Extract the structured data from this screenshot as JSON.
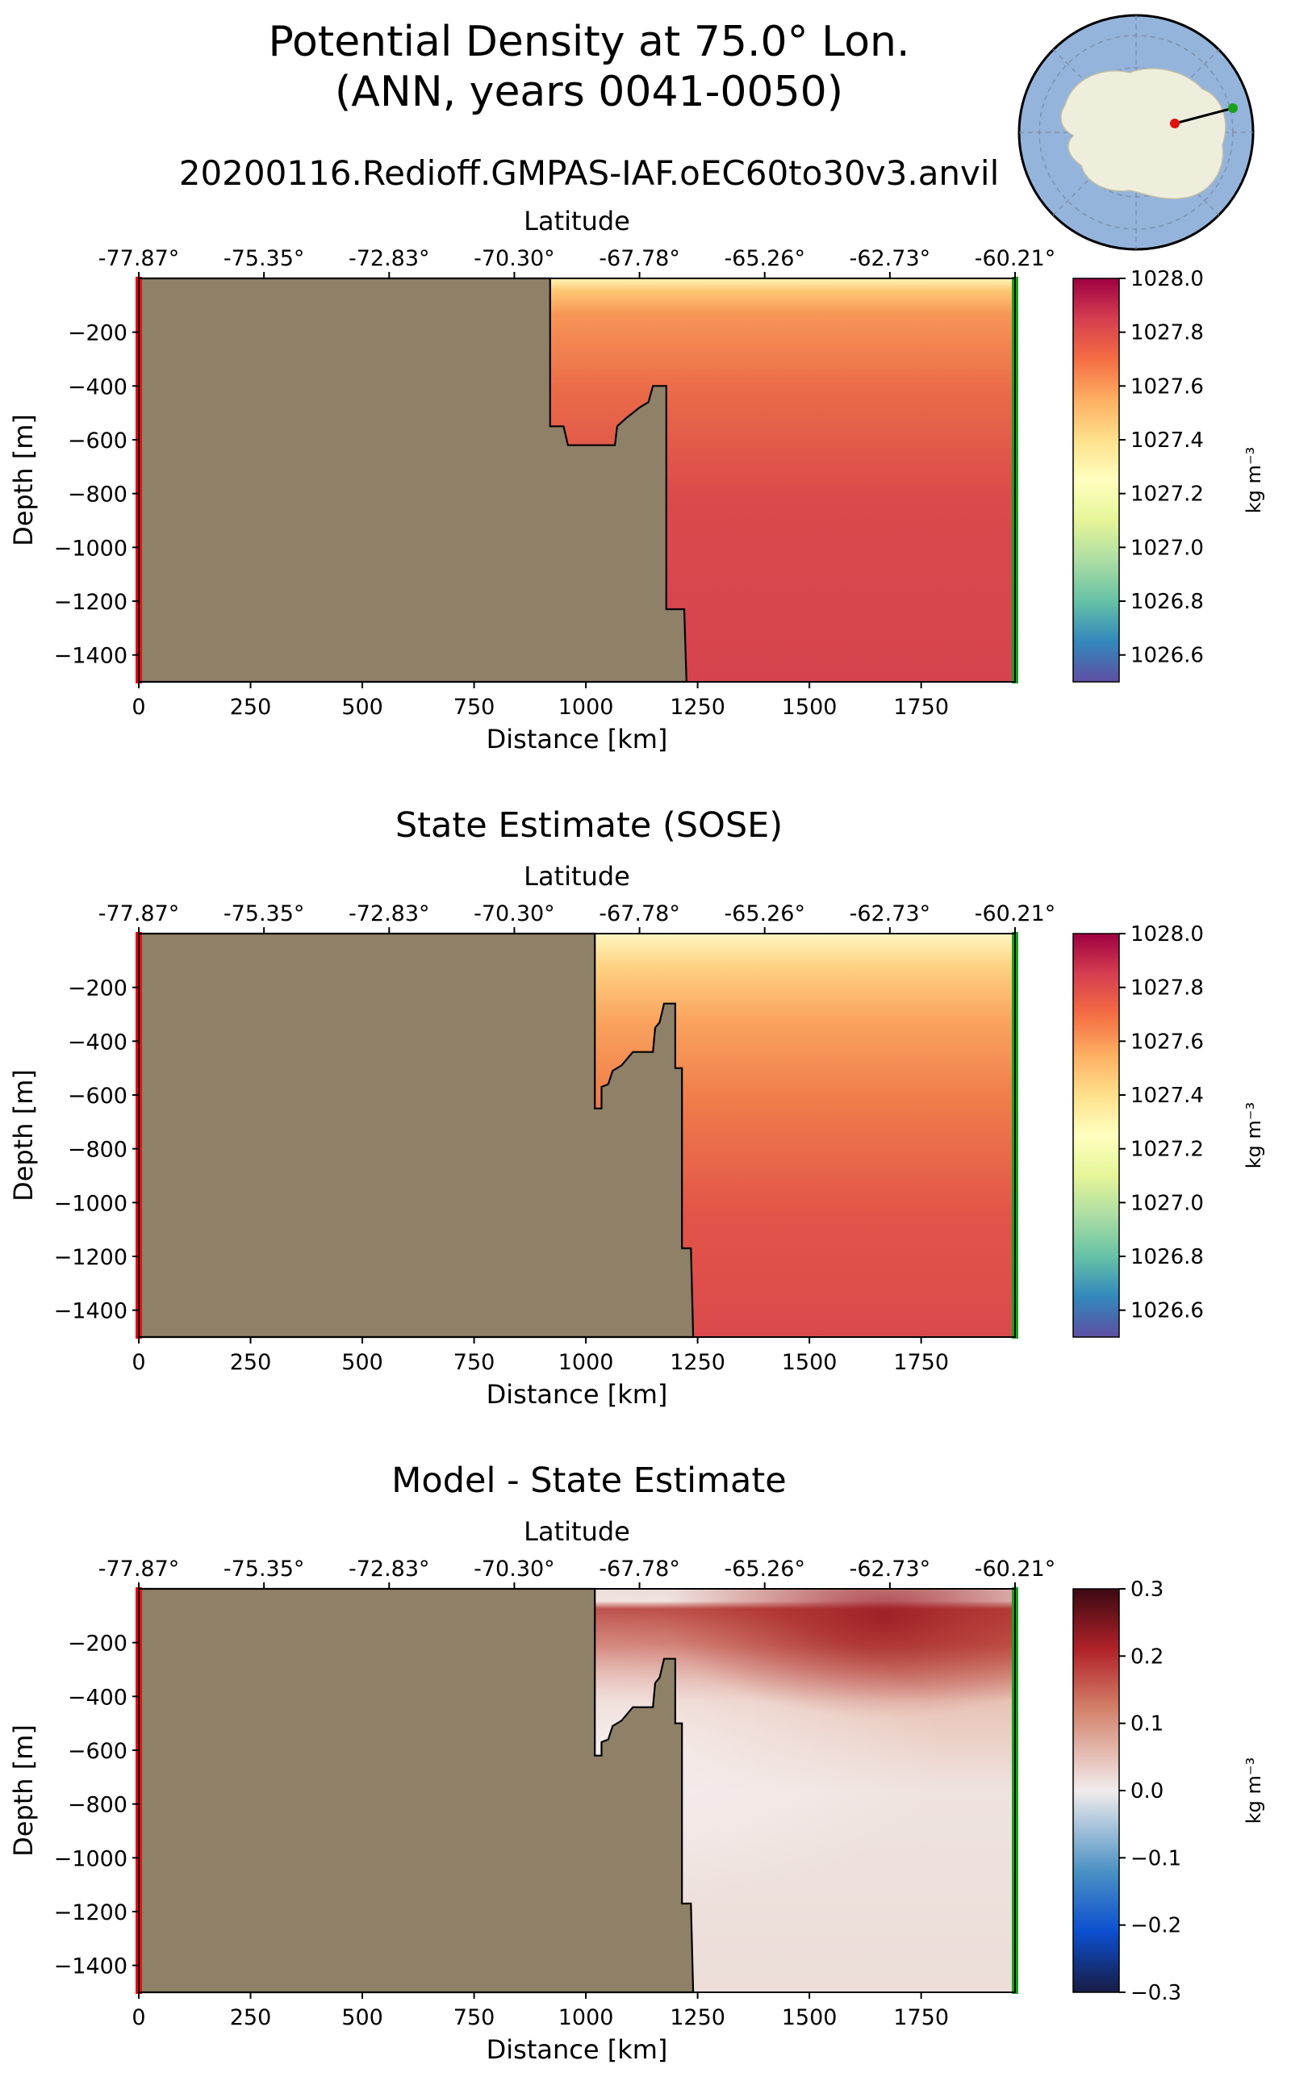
{
  "figure": {
    "title_line1": "Potential Density at 75.0° Lon.",
    "title_line2": "(ANN, years 0041-0050)",
    "run_name": "20200116.Redioff.GMPAS-IAF.oEC60to30v3.anvil"
  },
  "chart_data": [
    {
      "type": "heatmap",
      "title": "",
      "xlabel": "Distance [km]",
      "ylabel": "Depth [m]",
      "top_xlabel": "Latitude",
      "xlim": [
        0,
        1960
      ],
      "ylim": [
        -1500,
        0
      ],
      "x_ticks": [
        0,
        250,
        500,
        750,
        1000,
        1250,
        1500,
        1750
      ],
      "y_ticks": [
        -200,
        -400,
        -600,
        -800,
        -1000,
        -1200,
        -1400
      ],
      "lat_ticks": [
        "-77.87°",
        "-75.35°",
        "-72.83°",
        "-70.30°",
        "-67.78°",
        "-65.26°",
        "-62.73°",
        "-60.21°"
      ],
      "colorbar": {
        "min": 1026.5,
        "max": 1028.0,
        "ticks": [
          "1028.0",
          "1027.8",
          "1027.6",
          "1027.4",
          "1027.2",
          "1027.0",
          "1026.8",
          "1026.6"
        ],
        "label": "kg m⁻³",
        "colormap": "spectral"
      },
      "bathymetry": [
        [
          0,
          0
        ],
        [
          920,
          0
        ],
        [
          920,
          -550
        ],
        [
          950,
          -550
        ],
        [
          960,
          -620
        ],
        [
          1065,
          -620
        ],
        [
          1070,
          -550
        ],
        [
          1090,
          -520
        ],
        [
          1105,
          -500
        ],
        [
          1120,
          -480
        ],
        [
          1140,
          -460
        ],
        [
          1150,
          -400
        ],
        [
          1180,
          -400
        ],
        [
          1180,
          -1230
        ],
        [
          1220,
          -1230
        ],
        [
          1225,
          -1500
        ],
        [
          0,
          -1500
        ]
      ],
      "surface_value": 1027.25,
      "deep_value": 1027.77
    },
    {
      "type": "heatmap",
      "title": "State Estimate (SOSE)",
      "xlabel": "Distance [km]",
      "ylabel": "Depth [m]",
      "top_xlabel": "Latitude",
      "xlim": [
        0,
        1960
      ],
      "ylim": [
        -1500,
        0
      ],
      "x_ticks": [
        0,
        250,
        500,
        750,
        1000,
        1250,
        1500,
        1750
      ],
      "y_ticks": [
        -200,
        -400,
        -600,
        -800,
        -1000,
        -1200,
        -1400
      ],
      "lat_ticks": [
        "-77.87°",
        "-75.35°",
        "-72.83°",
        "-70.30°",
        "-67.78°",
        "-65.26°",
        "-62.73°",
        "-60.21°"
      ],
      "colorbar": {
        "min": 1026.5,
        "max": 1028.0,
        "ticks": [
          "1028.0",
          "1027.8",
          "1027.6",
          "1027.4",
          "1027.2",
          "1027.0",
          "1026.8",
          "1026.6"
        ],
        "label": "kg m⁻³",
        "colormap": "spectral"
      },
      "bathymetry": [
        [
          0,
          0
        ],
        [
          1020,
          0
        ],
        [
          1020,
          -650
        ],
        [
          1035,
          -650
        ],
        [
          1035,
          -570
        ],
        [
          1050,
          -560
        ],
        [
          1060,
          -510
        ],
        [
          1080,
          -490
        ],
        [
          1105,
          -440
        ],
        [
          1150,
          -440
        ],
        [
          1155,
          -350
        ],
        [
          1165,
          -330
        ],
        [
          1175,
          -260
        ],
        [
          1200,
          -260
        ],
        [
          1200,
          -500
        ],
        [
          1215,
          -500
        ],
        [
          1215,
          -1170
        ],
        [
          1235,
          -1170
        ],
        [
          1240,
          -1500
        ],
        [
          0,
          -1500
        ]
      ],
      "surface_value": 1027.3,
      "deep_value": 1027.75
    },
    {
      "type": "heatmap",
      "title": "Model - State Estimate",
      "xlabel": "Distance [km]",
      "ylabel": "Depth [m]",
      "top_xlabel": "Latitude",
      "xlim": [
        0,
        1960
      ],
      "ylim": [
        -1500,
        0
      ],
      "x_ticks": [
        0,
        250,
        500,
        750,
        1000,
        1250,
        1500,
        1750
      ],
      "y_ticks": [
        -200,
        -400,
        -600,
        -800,
        -1000,
        -1200,
        -1400
      ],
      "lat_ticks": [
        "-77.87°",
        "-75.35°",
        "-72.83°",
        "-70.30°",
        "-67.78°",
        "-65.26°",
        "-62.73°",
        "-60.21°"
      ],
      "colorbar": {
        "min": -0.3,
        "max": 0.3,
        "ticks": [
          "0.3",
          "0.2",
          "0.1",
          "0.0",
          "−0.1",
          "−0.2",
          "−0.3"
        ],
        "label": "kg m⁻³",
        "colormap": "balance"
      },
      "bathymetry": [
        [
          0,
          0
        ],
        [
          1020,
          0
        ],
        [
          1020,
          -620
        ],
        [
          1035,
          -620
        ],
        [
          1035,
          -570
        ],
        [
          1050,
          -560
        ],
        [
          1060,
          -510
        ],
        [
          1080,
          -490
        ],
        [
          1105,
          -440
        ],
        [
          1150,
          -440
        ],
        [
          1155,
          -350
        ],
        [
          1165,
          -330
        ],
        [
          1175,
          -260
        ],
        [
          1200,
          -260
        ],
        [
          1200,
          -500
        ],
        [
          1215,
          -500
        ],
        [
          1215,
          -1170
        ],
        [
          1235,
          -1170
        ],
        [
          1240,
          -1500
        ],
        [
          0,
          -1500
        ]
      ]
    }
  ],
  "colors": {
    "land": "#8f8167",
    "ocean_map": "#94b4dc",
    "land_map": "#efeedd",
    "start_marker": "#e01010",
    "end_marker": "#1aa01a"
  }
}
